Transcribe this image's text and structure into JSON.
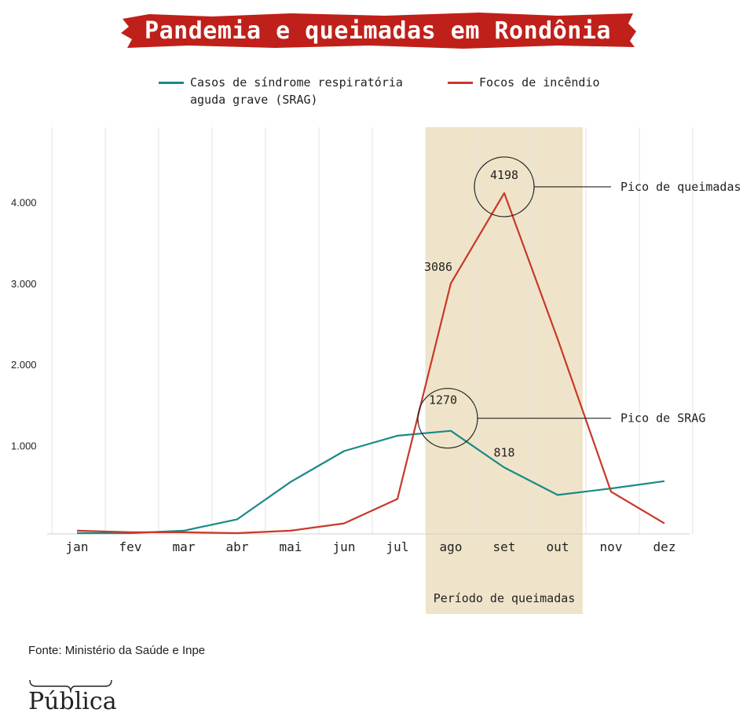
{
  "title": "Pandemia e queimadas em Rondônia",
  "legend": [
    {
      "label": "Casos de síndrome respiratória aguda grave (SRAG)",
      "color": "#1a8a86"
    },
    {
      "label": "Focos de incêndio",
      "color": "#c8382a"
    }
  ],
  "colors": {
    "banner": "#c0201a",
    "highlight": "#efe4c9",
    "grid": "#e3e3e3",
    "text": "#222222"
  },
  "chart_data": {
    "type": "line",
    "title": "Pandemia e queimadas em Rondônia",
    "categories": [
      "jan",
      "fev",
      "mar",
      "abr",
      "mai",
      "jun",
      "jul",
      "ago",
      "set",
      "out",
      "nov",
      "dez"
    ],
    "yticks": [
      1000,
      2000,
      3000,
      4000
    ],
    "ytick_labels": [
      "1.000",
      "2.000",
      "3.000",
      "4.000"
    ],
    "ylim": [
      0,
      5000
    ],
    "series": [
      {
        "name": "Casos de síndrome respiratória aguda grave (SRAG)",
        "color": "#1a8a86",
        "values": [
          10,
          10,
          40,
          180,
          640,
          1020,
          1210,
          1270,
          818,
          480,
          560,
          650
        ]
      },
      {
        "name": "Focos de incêndio",
        "color": "#c8382a",
        "values": [
          40,
          20,
          20,
          10,
          40,
          130,
          430,
          3086,
          4198,
          2400,
          520,
          130
        ]
      }
    ],
    "highlight": {
      "from": "ago",
      "to": "out",
      "label": "Período de queimadas"
    },
    "annotations": {
      "sep_peak": "4198",
      "aug_fire": "3086",
      "aug_srag": "1270",
      "sep_srag": "818",
      "fire_peak_label": "Pico de queimadas",
      "srag_peak_label": "Pico de SRAG"
    }
  },
  "source": "Fonte: Ministério da Saúde e Inpe",
  "logo": "Pública"
}
